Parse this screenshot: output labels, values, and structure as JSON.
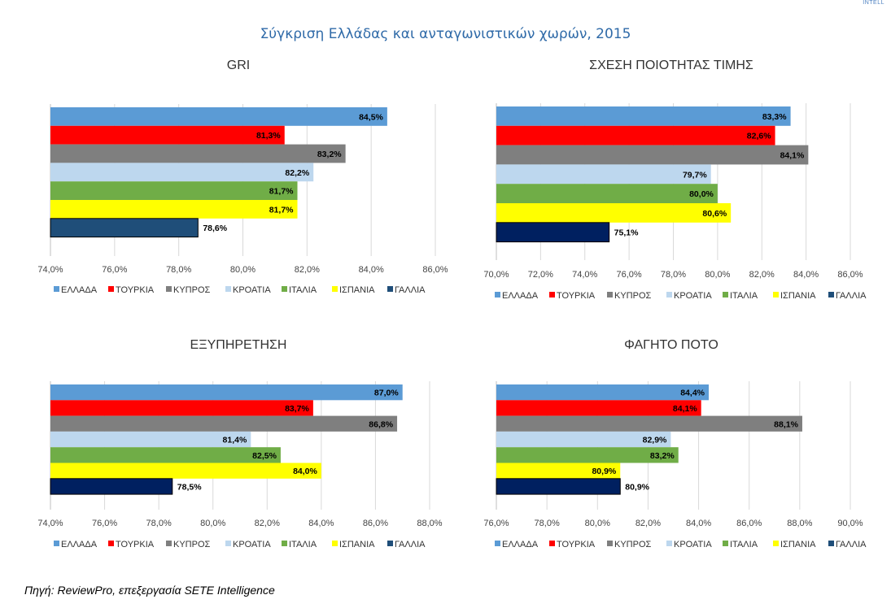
{
  "page": {
    "title": "Σύγκριση Ελλάδας και ανταγωνιστικών χωρών, 2015",
    "source": "Πηγή: ReviewPro, επεξεργασία SETE Intelligence",
    "corner_mark": "INTELL"
  },
  "legend": {
    "entries": [
      {
        "label": "ΕΛΛΑΔΑ",
        "color": "#5b9bd5"
      },
      {
        "label": "ΤΟΥΡΚΙΑ",
        "color": "#ff0000"
      },
      {
        "label": "ΚΥΠΡΟΣ",
        "color": "#7f7f7f"
      },
      {
        "label": "ΚΡΟΑΤΙΑ",
        "color": "#bdd7ee"
      },
      {
        "label": "ΙΤΑΛΙΑ",
        "color": "#70ad47"
      },
      {
        "label": "ΙΣΠΑΝΙΑ",
        "color": "#ffff00"
      },
      {
        "label": "ΓΑΛΛΙΑ",
        "color": "#1f4e79"
      }
    ],
    "placement": "bottom"
  },
  "chart_data": [
    {
      "type": "bar",
      "orientation": "horizontal",
      "title": "GRI",
      "categories": [
        "ΕΛΛΑΔΑ",
        "ΤΟΥΡΚΙΑ",
        "ΚΥΠΡΟΣ",
        "ΚΡΟΑΤΙΑ",
        "ΙΤΑΛΙΑ",
        "ΙΣΠΑΝΙΑ",
        "ΓΑΛΛΙΑ"
      ],
      "values": [
        84.5,
        81.3,
        83.2,
        82.2,
        81.7,
        81.7,
        78.6
      ],
      "value_labels": [
        "84,5%",
        "81,3%",
        "83,2%",
        "82,2%",
        "81,7%",
        "81,7%",
        "78,6%"
      ],
      "xlim": [
        74,
        86
      ],
      "ticks": [
        "74,0%",
        "76,0%",
        "78,0%",
        "80,0%",
        "82,0%",
        "84,0%",
        "86,0%"
      ],
      "colors": [
        "#5b9bd5",
        "#ff0000",
        "#7f7f7f",
        "#bdd7ee",
        "#70ad47",
        "#ffff00",
        "#1f4e79"
      ],
      "grid": true,
      "legend": "bottom"
    },
    {
      "type": "bar",
      "orientation": "horizontal",
      "title": "ΣΧΕΣΗ ΠΟΙΟΤΗΤΑΣ ΤΙΜΗΣ",
      "categories": [
        "ΕΛΛΑΔΑ",
        "ΤΟΥΡΚΙΑ",
        "ΚΥΠΡΟΣ",
        "ΚΡΟΑΤΙΑ",
        "ΙΤΑΛΙΑ",
        "ΙΣΠΑΝΙΑ",
        "ΓΑΛΛΙΑ"
      ],
      "values": [
        83.3,
        82.6,
        84.1,
        79.7,
        80.0,
        80.6,
        75.1
      ],
      "value_labels": [
        "83,3%",
        "82,6%",
        "84,1%",
        "79,7%",
        "80,0%",
        "80,6%",
        "75,1%"
      ],
      "xlim": [
        70,
        86
      ],
      "ticks": [
        "70,0%",
        "72,0%",
        "74,0%",
        "76,0%",
        "78,0%",
        "80,0%",
        "82,0%",
        "84,0%",
        "86,0%"
      ],
      "colors": [
        "#5b9bd5",
        "#ff0000",
        "#7f7f7f",
        "#bdd7ee",
        "#70ad47",
        "#ffff00",
        "#002060"
      ],
      "grid": true,
      "legend": "bottom"
    },
    {
      "type": "bar",
      "orientation": "horizontal",
      "title": "ΕΞΥΠΗΡΕΤΗΣΗ",
      "categories": [
        "ΕΛΛΑΔΑ",
        "ΤΟΥΡΚΙΑ",
        "ΚΥΠΡΟΣ",
        "ΚΡΟΑΤΙΑ",
        "ΙΤΑΛΙΑ",
        "ΙΣΠΑΝΙΑ",
        "ΓΑΛΛΙΑ"
      ],
      "values": [
        87.0,
        83.7,
        86.8,
        81.4,
        82.5,
        84.0,
        78.5
      ],
      "value_labels": [
        "87,0%",
        "83,7%",
        "86,8%",
        "81,4%",
        "82,5%",
        "84,0%",
        "78,5%"
      ],
      "xlim": [
        74,
        88
      ],
      "ticks": [
        "74,0%",
        "76,0%",
        "78,0%",
        "80,0%",
        "82,0%",
        "84,0%",
        "86,0%",
        "88,0%"
      ],
      "colors": [
        "#5b9bd5",
        "#ff0000",
        "#7f7f7f",
        "#bdd7ee",
        "#70ad47",
        "#ffff00",
        "#002060"
      ],
      "grid": true,
      "legend": "bottom"
    },
    {
      "type": "bar",
      "orientation": "horizontal",
      "title": "ΦΑΓΗΤΟ ΠΟΤΟ",
      "categories": [
        "ΕΛΛΑΔΑ",
        "ΤΟΥΡΚΙΑ",
        "ΚΥΠΡΟΣ",
        "ΚΡΟΑΤΙΑ",
        "ΙΤΑΛΙΑ",
        "ΙΣΠΑΝΙΑ",
        "ΓΑΛΛΙΑ"
      ],
      "values": [
        84.4,
        84.1,
        88.1,
        82.9,
        83.2,
        80.9,
        80.9
      ],
      "value_labels": [
        "84,4%",
        "84,1%",
        "88,1%",
        "82,9%",
        "83,2%",
        "80,9%",
        "80,9%"
      ],
      "xlim": [
        76,
        90
      ],
      "ticks": [
        "76,0%",
        "78,0%",
        "80,0%",
        "82,0%",
        "84,0%",
        "86,0%",
        "88,0%",
        "90,0%"
      ],
      "colors": [
        "#5b9bd5",
        "#ff0000",
        "#7f7f7f",
        "#bdd7ee",
        "#70ad47",
        "#ffff00",
        "#002060"
      ],
      "grid": true,
      "legend": "bottom"
    }
  ]
}
